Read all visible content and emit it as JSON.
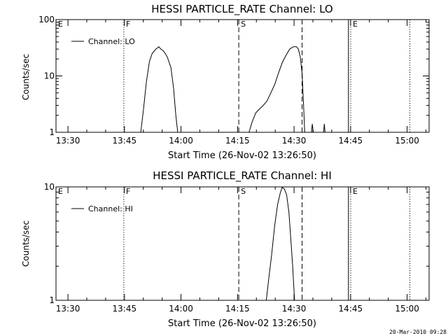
{
  "timestamp": "20-Mar-2010 09:28",
  "chart_data": [
    {
      "type": "line",
      "title": "HESSI PARTICLE_RATE Channel: LO",
      "xlabel": "Start Time (26-Nov-02 13:26:50)",
      "ylabel": "Counts/sec",
      "yscale": "log",
      "ylim": [
        1,
        100
      ],
      "yticks": [
        "1",
        "10",
        "100"
      ],
      "xlim_min_from_start": [
        0,
        99
      ],
      "xticks": [
        "13:30",
        "13:45",
        "14:00",
        "14:15",
        "14:30",
        "14:45",
        "15:00"
      ],
      "xtick_min_from_start": [
        3.17,
        18.17,
        33.17,
        48.17,
        63.17,
        78.17,
        93.17
      ],
      "legend": "Channel: LO",
      "legend_position": "top-left",
      "markers": [
        {
          "label": "E",
          "style": "solid",
          "t": 0
        },
        {
          "label": "F",
          "style": "dotted",
          "t": 18.0
        },
        {
          "label": "S",
          "style": "dashed",
          "t": 48.5
        },
        {
          "label": "",
          "style": "dashed",
          "t": 65.3
        },
        {
          "label": "",
          "style": "solid",
          "t": 77.6
        },
        {
          "label": "E",
          "style": "dotted",
          "t": 78.2
        },
        {
          "label": "",
          "style": "dotted",
          "t": 93.9
        }
      ],
      "segments": [
        [
          [
            22.5,
            1
          ],
          [
            23.2,
            2.5
          ],
          [
            24.0,
            8
          ],
          [
            24.8,
            18
          ],
          [
            25.5,
            25
          ],
          [
            26.5,
            30
          ],
          [
            27.3,
            33
          ],
          [
            27.8,
            30
          ],
          [
            28.5,
            28
          ],
          [
            29.5,
            22
          ],
          [
            30.5,
            14
          ],
          [
            31.2,
            6
          ],
          [
            31.8,
            2
          ],
          [
            32.3,
            1
          ]
        ],
        [
          [
            51.2,
            1
          ],
          [
            52.0,
            1.5
          ],
          [
            53.0,
            2.2
          ],
          [
            54.0,
            2.6
          ],
          [
            55.0,
            3.0
          ],
          [
            56.0,
            3.6
          ],
          [
            57.0,
            5
          ],
          [
            58.0,
            7
          ],
          [
            59.0,
            11
          ],
          [
            60.0,
            17
          ],
          [
            61.0,
            23
          ],
          [
            62.0,
            30
          ],
          [
            63.0,
            33
          ],
          [
            63.8,
            33
          ],
          [
            64.3,
            30
          ],
          [
            64.8,
            22
          ],
          [
            65.3,
            11
          ],
          [
            65.7,
            3
          ],
          [
            66.0,
            1
          ]
        ],
        [
          [
            67.8,
            1
          ],
          [
            68.0,
            1.4
          ],
          [
            68.3,
            1
          ]
        ],
        [
          [
            71.0,
            1
          ],
          [
            71.2,
            1.4
          ],
          [
            71.4,
            1
          ]
        ]
      ]
    },
    {
      "type": "line",
      "title": "HESSI PARTICLE_RATE Channel: HI",
      "xlabel": "Start Time (26-Nov-02 13:26:50)",
      "ylabel": "Counts/sec",
      "yscale": "log",
      "ylim": [
        1,
        10
      ],
      "yticks": [
        "1",
        "10"
      ],
      "xlim_min_from_start": [
        0,
        99
      ],
      "xticks": [
        "13:30",
        "13:45",
        "14:00",
        "14:15",
        "14:30",
        "14:45",
        "15:00"
      ],
      "xtick_min_from_start": [
        3.17,
        18.17,
        33.17,
        48.17,
        63.17,
        78.17,
        93.17
      ],
      "legend": "Channel: HI",
      "legend_position": "top-left",
      "markers": [
        {
          "label": "E",
          "style": "solid",
          "t": 0
        },
        {
          "label": "F",
          "style": "dotted",
          "t": 18.0
        },
        {
          "label": "S",
          "style": "dashed",
          "t": 48.5
        },
        {
          "label": "",
          "style": "dashed",
          "t": 65.3
        },
        {
          "label": "",
          "style": "solid",
          "t": 77.6
        },
        {
          "label": "E",
          "style": "dotted",
          "t": 78.2
        },
        {
          "label": "",
          "style": "dotted",
          "t": 93.9
        }
      ],
      "segments": [
        [
          [
            55.8,
            1
          ],
          [
            56.5,
            1.6
          ],
          [
            57.2,
            2.5
          ],
          [
            58.0,
            4.5
          ],
          [
            58.8,
            7
          ],
          [
            59.5,
            8.8
          ],
          [
            60.0,
            9.9
          ],
          [
            60.6,
            9.6
          ],
          [
            61.2,
            8.5
          ],
          [
            61.8,
            6
          ],
          [
            62.3,
            3.5
          ],
          [
            62.8,
            2
          ],
          [
            63.3,
            1
          ]
        ]
      ]
    }
  ]
}
